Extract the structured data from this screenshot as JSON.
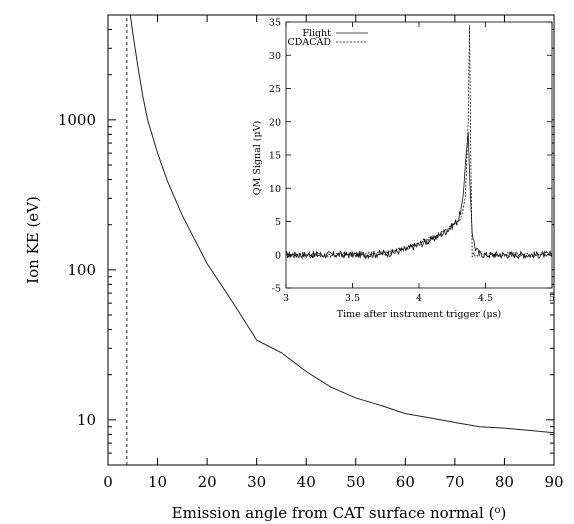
{
  "chart_data": [
    {
      "type": "line",
      "title": "",
      "xlabel": "Emission angle from CAT surface normal (o)",
      "ylabel": "Ion KE (eV)",
      "xlim": [
        0,
        90
      ],
      "ylim": [
        5,
        5000
      ],
      "yscale": "log",
      "xticks": [
        "0",
        "10",
        "20",
        "30",
        "40",
        "50",
        "60",
        "70",
        "80",
        "90"
      ],
      "yticks": [
        "10",
        "100",
        "1000"
      ],
      "grid": false,
      "series": [
        {
          "style": "solid",
          "x": [
            4.5,
            5,
            6,
            7,
            8,
            10,
            12,
            15,
            20,
            25,
            30,
            35,
            40,
            45,
            50,
            55,
            60,
            65,
            70,
            75,
            80,
            85,
            90
          ],
          "y": [
            5000,
            3800,
            2300,
            1450,
            1000,
            600,
            390,
            230,
            110,
            62,
            34,
            28,
            21,
            16.5,
            14,
            12.5,
            11,
            10.3,
            9.6,
            9,
            8.8,
            8.5,
            8.2
          ]
        },
        {
          "style": "dashed",
          "x": [
            3.8,
            3.8
          ],
          "y": [
            5,
            5000
          ]
        }
      ]
    },
    {
      "type": "line",
      "title": "",
      "xlabel": "Time after instrument trigger (μs)",
      "ylabel": "QM Signal (μV)",
      "xlim": [
        3,
        5
      ],
      "ylim": [
        -5,
        35
      ],
      "xticks": [
        "3",
        "3.5",
        "4",
        "4.5",
        "5"
      ],
      "yticks": [
        "-5",
        "0",
        "5",
        "10",
        "15",
        "20",
        "25",
        "30",
        "35"
      ],
      "grid": false,
      "legend_position": "top-left",
      "series": [
        {
          "name": "Flight",
          "style": "solid",
          "x": [
            3.0,
            3.2,
            3.4,
            3.6,
            3.8,
            3.9,
            4.0,
            4.1,
            4.2,
            4.25,
            4.3,
            4.33,
            4.35,
            4.37,
            4.38,
            4.4,
            4.42,
            4.45,
            4.5,
            4.6,
            4.7,
            4.8,
            5.0
          ],
          "y": [
            0,
            0,
            0,
            0,
            0.3,
            0.8,
            1.5,
            2.3,
            3.5,
            4.3,
            5.5,
            8.0,
            14.0,
            18.5,
            12.0,
            3.5,
            1.2,
            0.2,
            0,
            0,
            0,
            0,
            0
          ]
        },
        {
          "name": "CDACAD",
          "style": "dashed",
          "x": [
            3.0,
            3.2,
            3.4,
            3.6,
            3.8,
            3.9,
            4.0,
            4.1,
            4.2,
            4.25,
            4.3,
            4.33,
            4.35,
            4.37,
            4.38,
            4.39,
            4.4,
            4.42,
            4.45,
            4.5,
            5.0
          ],
          "y": [
            0,
            0,
            0,
            0,
            0.5,
            1.0,
            1.8,
            2.5,
            3.6,
            4.3,
            5.0,
            6.5,
            9.0,
            20.0,
            34.5,
            14.0,
            0,
            0,
            0,
            0,
            0
          ]
        }
      ]
    }
  ]
}
